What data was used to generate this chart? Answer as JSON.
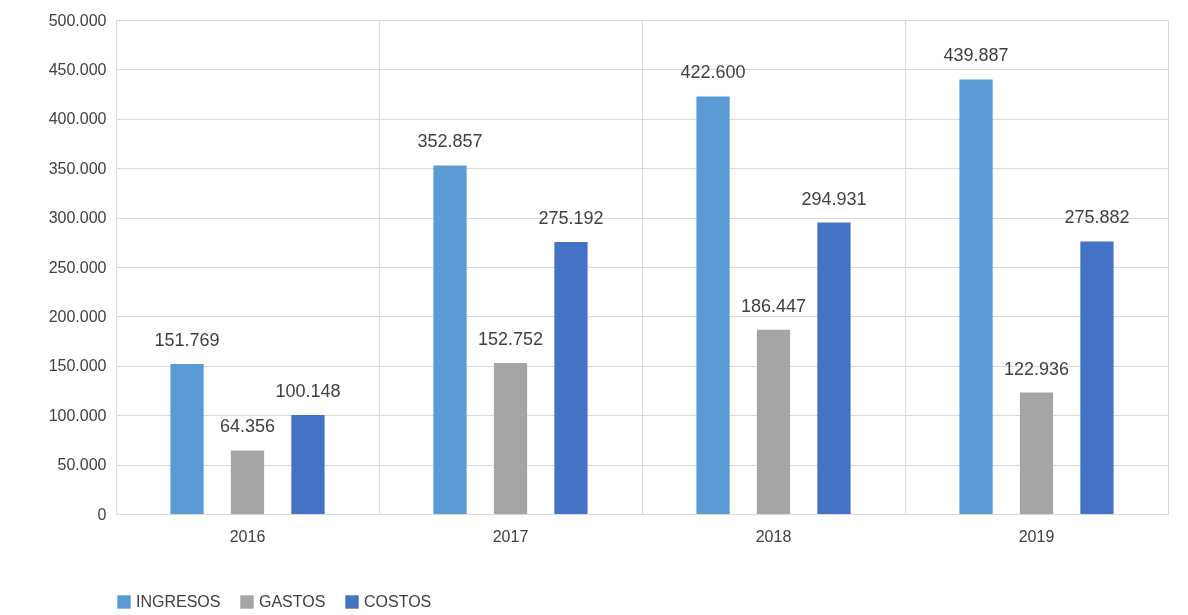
{
  "chart_data": {
    "type": "bar",
    "categories": [
      "2016",
      "2017",
      "2018",
      "2019"
    ],
    "series": [
      {
        "name": "INGRESOS",
        "color": "#5b9bd5",
        "values": [
          151769,
          352857,
          422600,
          439887
        ],
        "value_labels": [
          "151.769",
          "352.857",
          "422.600",
          "439.887"
        ]
      },
      {
        "name": "GASTOS",
        "color": "#a5a5a5",
        "values": [
          64356,
          152752,
          186447,
          122936
        ],
        "value_labels": [
          "64.356",
          "152.752",
          "186.447",
          "122.936"
        ]
      },
      {
        "name": "COSTOS",
        "color": "#4472c4",
        "values": [
          100148,
          275192,
          294931,
          275882
        ],
        "value_labels": [
          "100.148",
          "275.192",
          "294.931",
          "275.882"
        ]
      }
    ],
    "ylim": [
      0,
      500000
    ],
    "yticks": [
      0,
      {
        "value": 50000,
        "label": "50.000"
      },
      {
        "value": 100000,
        "label": "100.000"
      },
      {
        "value": 150000,
        "label": "150.000"
      },
      {
        "value": 200000,
        "label": "200.000"
      },
      {
        "value": 250000,
        "label": "250.000"
      },
      {
        "value": 300000,
        "label": "300.000"
      },
      {
        "value": 350000,
        "label": "350.000"
      },
      {
        "value": 400000,
        "label": "400.000"
      },
      {
        "value": 450000,
        "label": "450.000"
      },
      {
        "value": 500000,
        "label": "500.000"
      }
    ],
    "grid": true,
    "legend": "bottom"
  }
}
